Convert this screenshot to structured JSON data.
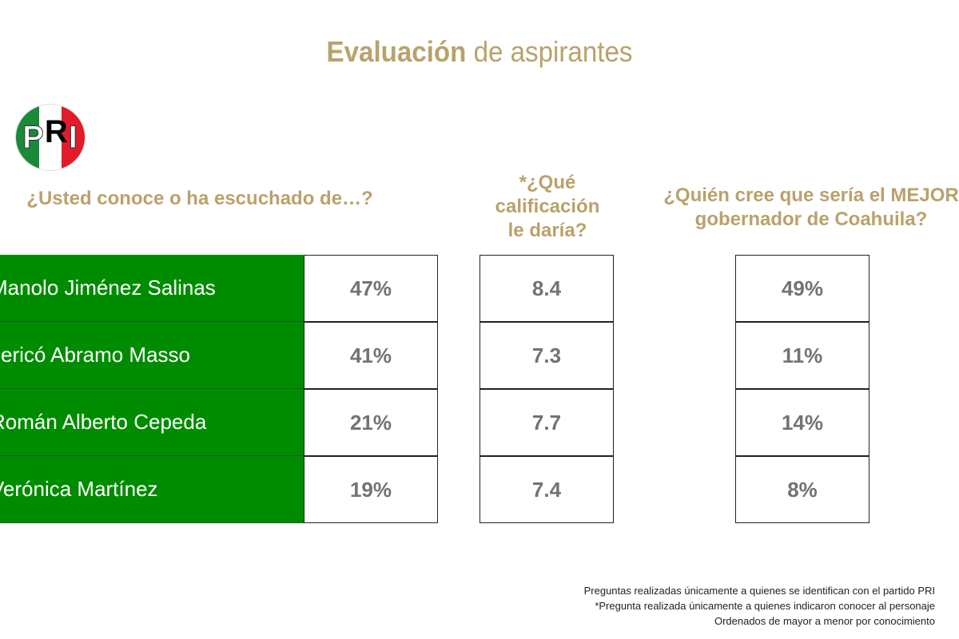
{
  "title": {
    "bold": "Evaluación",
    "rest": " de aspirantes"
  },
  "logo": {
    "text": "PRI",
    "colors": [
      "#1a8a3a",
      "#ffffff",
      "#e21b2a"
    ]
  },
  "questions": {
    "q1": "¿Usted conoce o ha escuchado de…?",
    "q2": [
      "*¿Qué",
      "calificación",
      "le daría?"
    ],
    "q3": [
      "¿Quién cree que sería el MEJOR",
      "gobernador de Coahuila?"
    ]
  },
  "rows": [
    {
      "name": "Manolo Jiménez Salinas",
      "conoce": "47%",
      "calificacion": "8.4",
      "mejor": "49%"
    },
    {
      "name": "Jericó Abramo Masso",
      "conoce": "41%",
      "calificacion": "7.3",
      "mejor": "11%"
    },
    {
      "name": "Román Alberto Cepeda",
      "conoce": "21%",
      "calificacion": "7.7",
      "mejor": "14%"
    },
    {
      "name": "Verónica Martínez",
      "conoce": "19%",
      "calificacion": "7.4",
      "mejor": "8%"
    }
  ],
  "footnotes": [
    "Preguntas realizadas únicamente a quienes se identifican con el partido PRI",
    "*Pregunta realizada únicamente a quienes indicaron conocer al personaje",
    "Ordenados de mayor a menor por conocimiento"
  ],
  "colors": {
    "gold": "#b9a26b",
    "green": "#008c00",
    "value_text": "#737373"
  }
}
